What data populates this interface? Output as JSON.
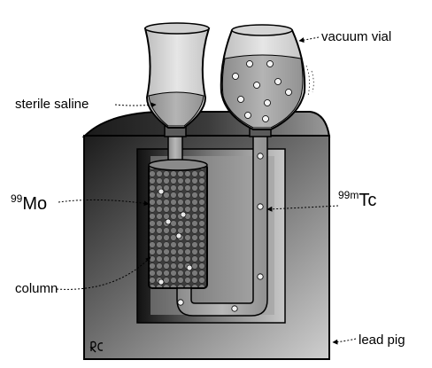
{
  "labels": {
    "vacuum_vial": "vacuum vial",
    "sterile_saline": "sterile saline",
    "mo_mass": "99",
    "mo_symbol": "Mo",
    "tc_mass": "99m",
    "tc_symbol": "Tc",
    "column": "column",
    "lead_pig": "lead pig"
  },
  "signature": "RC",
  "colors": {
    "outline": "#000000",
    "background": "#ffffff",
    "shield_dark": "#1a1a1a",
    "shield_light": "#c8c8c8",
    "glass": "#d8d8d8",
    "liquid": "#9a9a9a",
    "column_bead": "#6e6e6e"
  }
}
